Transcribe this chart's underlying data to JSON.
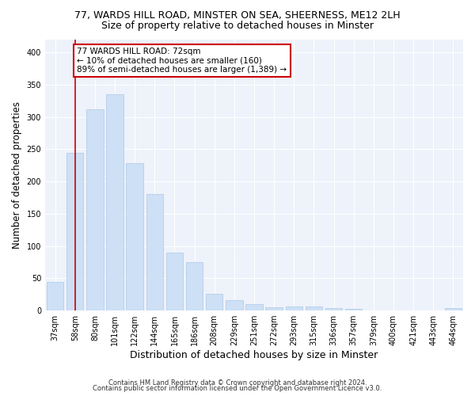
{
  "title_line1": "77, WARDS HILL ROAD, MINSTER ON SEA, SHEERNESS, ME12 2LH",
  "title_line2": "Size of property relative to detached houses in Minster",
  "xlabel": "Distribution of detached houses by size in Minster",
  "ylabel": "Number of detached properties",
  "categories": [
    "37sqm",
    "58sqm",
    "80sqm",
    "101sqm",
    "122sqm",
    "144sqm",
    "165sqm",
    "186sqm",
    "208sqm",
    "229sqm",
    "251sqm",
    "272sqm",
    "293sqm",
    "315sqm",
    "336sqm",
    "357sqm",
    "379sqm",
    "400sqm",
    "421sqm",
    "443sqm",
    "464sqm"
  ],
  "values": [
    44,
    245,
    312,
    335,
    228,
    180,
    90,
    75,
    26,
    16,
    10,
    5,
    6,
    6,
    4,
    3,
    0,
    0,
    0,
    0,
    4
  ],
  "bar_color": "#cde0f5",
  "bar_edge_color": "#adc8e8",
  "vline_x": 1,
  "vline_color": "#cc0000",
  "annotation_text": "77 WARDS HILL ROAD: 72sqm\n← 10% of detached houses are smaller (160)\n89% of semi-detached houses are larger (1,389) →",
  "annotation_box_color": "#ffffff",
  "annotation_box_edge": "#cc0000",
  "ylim": [
    0,
    420
  ],
  "yticks": [
    0,
    50,
    100,
    150,
    200,
    250,
    300,
    350,
    400
  ],
  "footer_line1": "Contains HM Land Registry data © Crown copyright and database right 2024.",
  "footer_line2": "Contains public sector information licensed under the Open Government Licence v3.0.",
  "bg_color": "#ffffff",
  "plot_bg_color": "#eef2fa",
  "grid_color": "#ffffff",
  "title_fontsize": 9,
  "subtitle_fontsize": 9,
  "tick_fontsize": 7,
  "ylabel_fontsize": 8.5,
  "xlabel_fontsize": 9,
  "annotation_fontsize": 7.5,
  "footer_fontsize": 6
}
